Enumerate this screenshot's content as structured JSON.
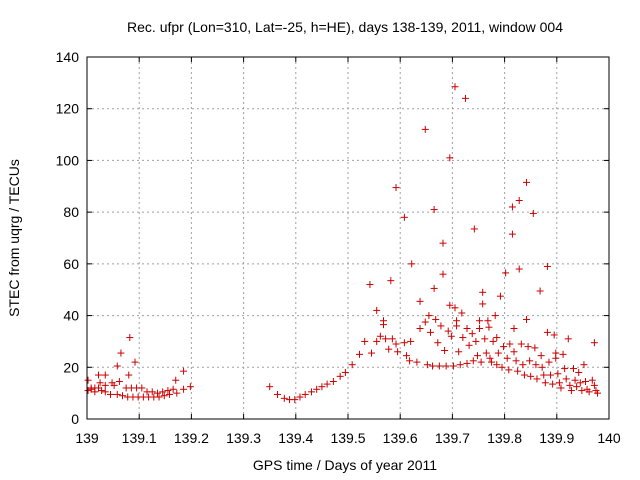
{
  "chart_data": {
    "type": "scatter",
    "title": "Rec. ufpr (Lon=310, Lat=-25, h=HE), days 138-139, 2011, window 004",
    "xlabel": "GPS time / Days of year 2011",
    "ylabel": "STEC from uqrg / TECUs",
    "xlim": [
      139,
      140
    ],
    "ylim": [
      0,
      140
    ],
    "xticks": [
      139,
      139.1,
      139.2,
      139.3,
      139.4,
      139.5,
      139.6,
      139.7,
      139.8,
      139.9,
      140
    ],
    "xtick_labels": [
      "139",
      "139.1",
      "139.2",
      "139.3",
      "139.4",
      "139.5",
      "139.6",
      "139.7",
      "139.8",
      "139.9",
      "140"
    ],
    "yticks": [
      0,
      20,
      40,
      60,
      80,
      100,
      120,
      140
    ],
    "ytick_labels": [
      "0",
      "20",
      "40",
      "60",
      "80",
      "100",
      "120",
      "140"
    ],
    "grid": true,
    "marker": "plus",
    "marker_color": "#cc0000",
    "series": [
      {
        "name": "STEC",
        "points": [
          [
            139.002,
            15
          ],
          [
            139.002,
            11
          ],
          [
            139.008,
            12
          ],
          [
            139.008,
            11.5
          ],
          [
            139.015,
            12
          ],
          [
            139.015,
            10.5
          ],
          [
            139.022,
            17
          ],
          [
            139.022,
            12
          ],
          [
            139.025,
            14
          ],
          [
            139.028,
            11
          ],
          [
            139.035,
            17
          ],
          [
            139.035,
            13
          ],
          [
            139.035,
            10.5
          ],
          [
            139.045,
            9.5
          ],
          [
            139.048,
            14
          ],
          [
            139.052,
            13
          ],
          [
            139.058,
            20.5
          ],
          [
            139.058,
            9.5
          ],
          [
            139.062,
            14.5
          ],
          [
            139.065,
            25.5
          ],
          [
            139.068,
            9
          ],
          [
            139.075,
            12
          ],
          [
            139.078,
            8.5
          ],
          [
            139.08,
            17
          ],
          [
            139.082,
            31.5
          ],
          [
            139.085,
            12
          ],
          [
            139.088,
            8.5
          ],
          [
            139.092,
            22
          ],
          [
            139.095,
            12
          ],
          [
            139.098,
            8.5
          ],
          [
            139.105,
            12
          ],
          [
            139.108,
            8.5
          ],
          [
            139.115,
            10.5
          ],
          [
            139.118,
            8.5
          ],
          [
            139.125,
            10.5
          ],
          [
            139.128,
            8.5
          ],
          [
            139.135,
            10
          ],
          [
            139.138,
            8.5
          ],
          [
            139.145,
            10.5
          ],
          [
            139.148,
            9
          ],
          [
            139.155,
            11
          ],
          [
            139.158,
            9.5
          ],
          [
            139.165,
            11.5
          ],
          [
            139.17,
            15
          ],
          [
            139.172,
            10
          ],
          [
            139.185,
            18.5
          ],
          [
            139.185,
            11.5
          ],
          [
            139.198,
            12.5
          ],
          [
            139.35,
            12.5
          ],
          [
            139.365,
            9.5
          ],
          [
            139.378,
            8
          ],
          [
            139.388,
            7.5
          ],
          [
            139.398,
            7.5
          ],
          [
            139.408,
            8.5
          ],
          [
            139.418,
            9.5
          ],
          [
            139.43,
            10.5
          ],
          [
            139.44,
            11.5
          ],
          [
            139.45,
            12.5
          ],
          [
            139.46,
            13.5
          ],
          [
            139.472,
            14.5
          ],
          [
            139.485,
            16.5
          ],
          [
            139.495,
            18
          ],
          [
            139.508,
            21
          ],
          [
            139.522,
            25
          ],
          [
            139.532,
            30
          ],
          [
            139.542,
            52
          ],
          [
            139.545,
            25.5
          ],
          [
            139.555,
            42
          ],
          [
            139.555,
            30
          ],
          [
            139.562,
            32
          ],
          [
            139.568,
            38
          ],
          [
            139.568,
            36.5
          ],
          [
            139.572,
            31
          ],
          [
            139.578,
            27
          ],
          [
            139.582,
            53.5
          ],
          [
            139.585,
            31
          ],
          [
            139.592,
            89.5
          ],
          [
            139.592,
            29
          ],
          [
            139.595,
            26
          ],
          [
            139.608,
            78
          ],
          [
            139.608,
            29.5
          ],
          [
            139.612,
            24.5
          ],
          [
            139.618,
            22.5
          ],
          [
            139.62,
            30
          ],
          [
            139.622,
            60
          ],
          [
            139.632,
            22
          ],
          [
            139.638,
            45.5
          ],
          [
            139.638,
            35
          ],
          [
            139.648,
            112
          ],
          [
            139.648,
            37.5
          ],
          [
            139.652,
            21
          ],
          [
            139.655,
            40
          ],
          [
            139.658,
            33.5
          ],
          [
            139.662,
            20.5
          ],
          [
            139.665,
            81
          ],
          [
            139.665,
            50.5
          ],
          [
            139.668,
            38.5
          ],
          [
            139.672,
            29.5
          ],
          [
            139.675,
            20.5
          ],
          [
            139.678,
            36
          ],
          [
            139.682,
            68
          ],
          [
            139.682,
            56
          ],
          [
            139.685,
            26.5
          ],
          [
            139.688,
            20.5
          ],
          [
            139.692,
            34
          ],
          [
            139.695,
            101
          ],
          [
            139.695,
            44
          ],
          [
            139.698,
            32
          ],
          [
            139.702,
            20.5
          ],
          [
            139.705,
            128.5
          ],
          [
            139.705,
            43
          ],
          [
            139.708,
            38
          ],
          [
            139.708,
            36
          ],
          [
            139.712,
            26
          ],
          [
            139.715,
            21
          ],
          [
            139.718,
            41
          ],
          [
            139.72,
            31.5
          ],
          [
            139.725,
            124
          ],
          [
            139.728,
            35
          ],
          [
            139.728,
            21.5
          ],
          [
            139.732,
            28.5
          ],
          [
            139.738,
            33
          ],
          [
            139.74,
            22.5
          ],
          [
            139.742,
            73.5
          ],
          [
            139.745,
            30
          ],
          [
            139.748,
            24.5
          ],
          [
            139.752,
            38
          ],
          [
            139.752,
            35
          ],
          [
            139.755,
            22
          ],
          [
            139.758,
            49
          ],
          [
            139.758,
            44.5
          ],
          [
            139.762,
            31
          ],
          [
            139.765,
            25.5
          ],
          [
            139.768,
            38
          ],
          [
            139.77,
            35.5
          ],
          [
            139.772,
            23.5
          ],
          [
            139.775,
            22
          ],
          [
            139.778,
            30
          ],
          [
            139.782,
            40
          ],
          [
            139.785,
            31.5
          ],
          [
            139.785,
            21
          ],
          [
            139.788,
            25.5
          ],
          [
            139.792,
            47.5
          ],
          [
            139.795,
            20
          ],
          [
            139.798,
            28
          ],
          [
            139.802,
            56.5
          ],
          [
            139.805,
            23.5
          ],
          [
            139.808,
            19
          ],
          [
            139.81,
            29
          ],
          [
            139.815,
            82
          ],
          [
            139.815,
            71.5
          ],
          [
            139.818,
            35
          ],
          [
            139.818,
            26
          ],
          [
            139.822,
            22.5
          ],
          [
            139.825,
            18.5
          ],
          [
            139.828,
            84.5
          ],
          [
            139.828,
            58
          ],
          [
            139.832,
            29
          ],
          [
            139.835,
            21
          ],
          [
            139.838,
            17
          ],
          [
            139.842,
            91.5
          ],
          [
            139.842,
            38.5
          ],
          [
            139.845,
            28
          ],
          [
            139.848,
            22.5
          ],
          [
            139.85,
            16.5
          ],
          [
            139.855,
            79.5
          ],
          [
            139.858,
            27.5
          ],
          [
            139.86,
            21
          ],
          [
            139.862,
            15.5
          ],
          [
            139.868,
            49.5
          ],
          [
            139.87,
            24.5
          ],
          [
            139.872,
            20
          ],
          [
            139.875,
            17
          ],
          [
            139.878,
            14
          ],
          [
            139.882,
            59
          ],
          [
            139.882,
            33.5
          ],
          [
            139.885,
            22
          ],
          [
            139.888,
            17
          ],
          [
            139.892,
            13.5
          ],
          [
            139.895,
            32.5
          ],
          [
            139.898,
            25.5
          ],
          [
            139.898,
            23.5
          ],
          [
            139.902,
            17.5
          ],
          [
            139.905,
            14
          ],
          [
            139.908,
            12
          ],
          [
            139.912,
            25
          ],
          [
            139.915,
            19.5
          ],
          [
            139.918,
            15.5
          ],
          [
            139.922,
            31
          ],
          [
            139.925,
            13
          ],
          [
            139.928,
            11
          ],
          [
            139.932,
            19.5
          ],
          [
            139.935,
            15
          ],
          [
            139.938,
            12.5
          ],
          [
            139.942,
            18
          ],
          [
            139.945,
            14
          ],
          [
            139.948,
            11
          ],
          [
            139.952,
            21
          ],
          [
            139.955,
            14.5
          ],
          [
            139.958,
            11.5
          ],
          [
            139.962,
            10.5
          ],
          [
            139.968,
            15
          ],
          [
            139.972,
            29.5
          ],
          [
            139.972,
            13
          ],
          [
            139.975,
            11
          ],
          [
            139.978,
            10
          ]
        ]
      }
    ]
  }
}
